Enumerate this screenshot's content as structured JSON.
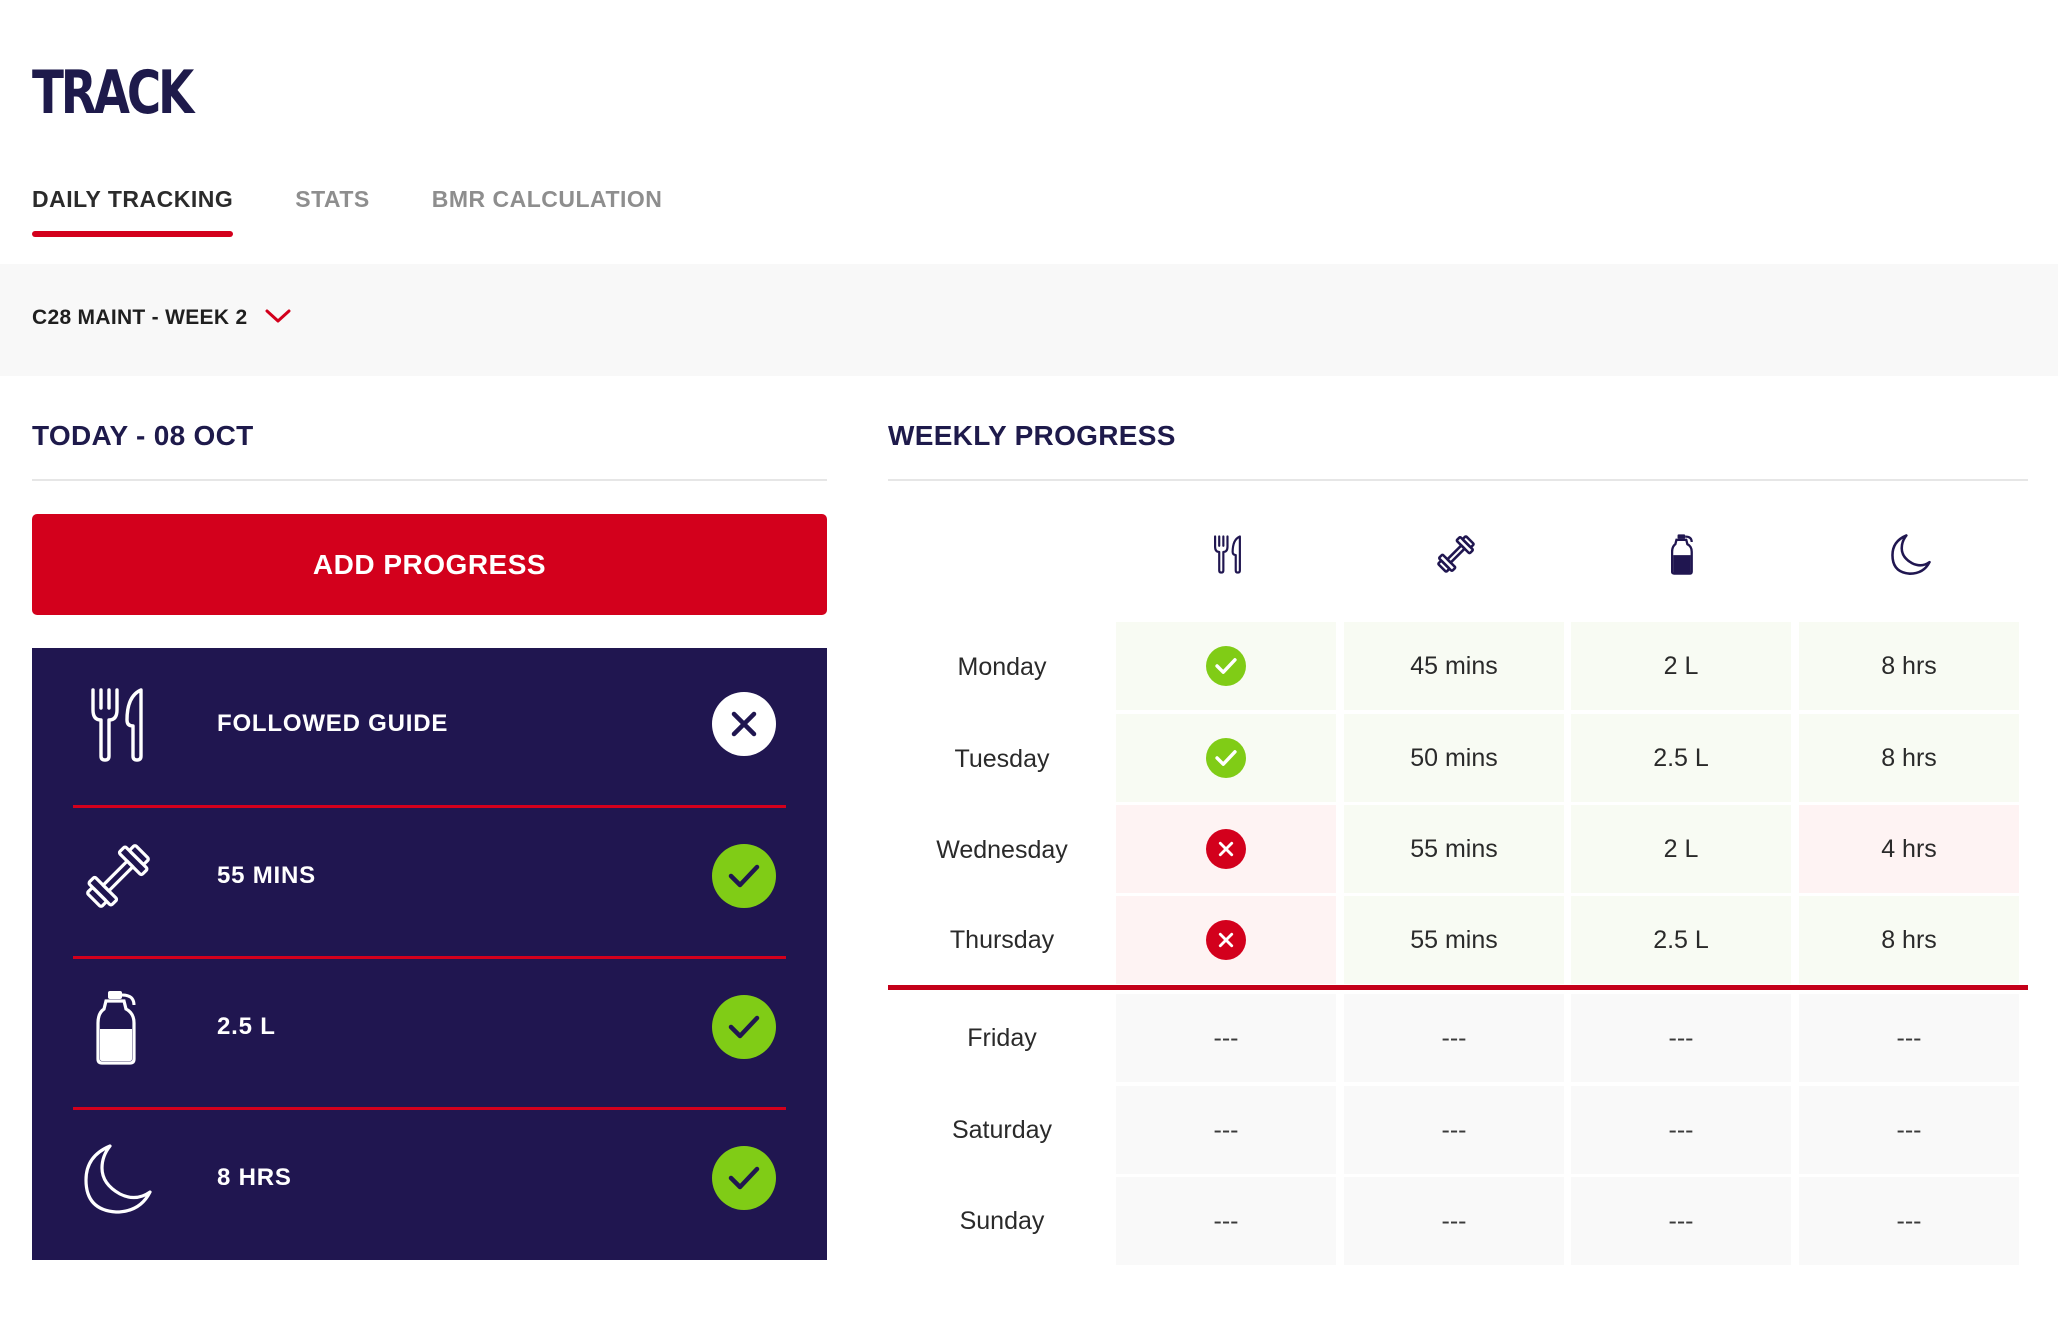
{
  "page": {
    "title": "TRACK"
  },
  "tabs": [
    {
      "label": "DAILY TRACKING",
      "active": true
    },
    {
      "label": "STATS",
      "active": false
    },
    {
      "label": "BMR CALCULATION",
      "active": false
    }
  ],
  "week_selector": {
    "label": "C28 MAINT - WEEK 2"
  },
  "today": {
    "title": "TODAY - 08 OCT",
    "add_button": "ADD PROGRESS",
    "items": [
      {
        "icon": "fork-knife-icon",
        "label": "FOLLOWED GUIDE",
        "status": "not-met"
      },
      {
        "icon": "dumbbell-icon",
        "label": "55 MINS",
        "status": "met"
      },
      {
        "icon": "water-bottle-icon",
        "label": "2.5 L",
        "status": "met"
      },
      {
        "icon": "moon-icon",
        "label": "8 HRS",
        "status": "met"
      }
    ]
  },
  "weekly": {
    "title": "WEEKLY PROGRESS",
    "columns": [
      {
        "icon": "fork-knife-icon",
        "metric": "food"
      },
      {
        "icon": "dumbbell-icon",
        "metric": "exercise"
      },
      {
        "icon": "water-bottle-icon",
        "metric": "water"
      },
      {
        "icon": "moon-icon",
        "metric": "sleep"
      }
    ],
    "rows": [
      {
        "day": "Monday",
        "food": "met",
        "exercise": "45 mins",
        "water": "2 L",
        "sleep": "8 hrs",
        "sleep_status": "met"
      },
      {
        "day": "Tuesday",
        "food": "met",
        "exercise": "50 mins",
        "water": "2.5 L",
        "sleep": "8 hrs",
        "sleep_status": "met"
      },
      {
        "day": "Wednesday",
        "food": "not-met",
        "exercise": "55 mins",
        "water": "2 L",
        "sleep": "4 hrs",
        "sleep_status": "not-met"
      },
      {
        "day": "Thursday",
        "food": "not-met",
        "exercise": "55 mins",
        "water": "2.5 L",
        "sleep": "8 hrs",
        "sleep_status": "met"
      },
      {
        "day": "Friday",
        "food": "---",
        "exercise": "---",
        "water": "---",
        "sleep": "---",
        "sleep_status": "none"
      },
      {
        "day": "Saturday",
        "food": "---",
        "exercise": "---",
        "water": "---",
        "sleep": "---",
        "sleep_status": "none"
      },
      {
        "day": "Sunday",
        "food": "---",
        "exercise": "---",
        "water": "---",
        "sleep": "---",
        "sleep_status": "none"
      }
    ]
  },
  "colors": {
    "accent": "#d3001c",
    "navy": "#201650",
    "success": "#80cc16"
  }
}
